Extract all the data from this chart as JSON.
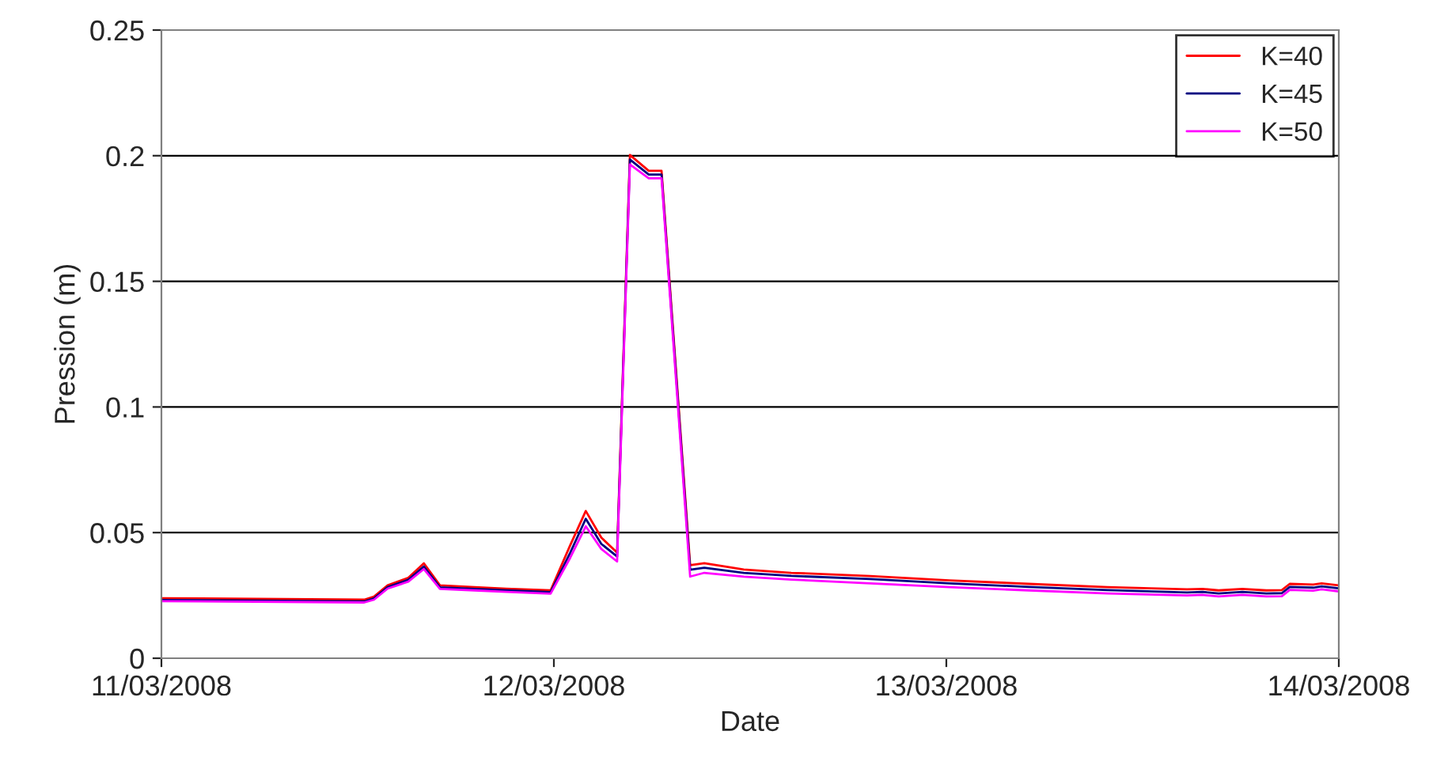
{
  "chart_data": {
    "type": "line",
    "xlabel": "Date",
    "ylabel": "Pression (m)",
    "x": [
      "2008-03-11T00:00",
      "2008-03-11T12:24",
      "2008-03-11T13:00",
      "2008-03-11T13:50",
      "2008-03-11T15:06",
      "2008-03-11T16:03",
      "2008-03-11T17:02",
      "2008-03-11T19:09",
      "2008-03-11T21:06",
      "2008-03-11T23:48",
      "2008-03-12T01:00",
      "2008-03-12T01:57",
      "2008-03-12T02:54",
      "2008-03-12T03:52",
      "2008-03-12T04:39",
      "2008-03-12T05:48",
      "2008-03-12T06:35",
      "2008-03-12T08:20",
      "2008-03-12T09:12",
      "2008-03-12T11:37",
      "2008-03-12T14:31",
      "2008-03-12T19:21",
      "2008-03-13T00:12",
      "2008-03-13T05:02",
      "2008-03-13T09:52",
      "2008-03-13T14:43",
      "2008-03-13T15:40",
      "2008-03-13T16:39",
      "2008-03-13T18:06",
      "2008-03-13T19:34",
      "2008-03-13T20:31",
      "2008-03-13T21:00",
      "2008-03-13T22:26",
      "2008-03-13T22:57",
      "2008-03-14T00:00"
    ],
    "series": [
      {
        "name": "K=40",
        "color": "#ff0000",
        "values": [
          0.0239,
          0.0233,
          0.0245,
          0.029,
          0.032,
          0.0378,
          0.029,
          0.0283,
          0.0277,
          0.027,
          0.045,
          0.0586,
          0.048,
          0.042,
          0.2003,
          0.194,
          0.194,
          0.037,
          0.0378,
          0.0353,
          0.034,
          0.0327,
          0.031,
          0.0296,
          0.0283,
          0.0274,
          0.0276,
          0.027,
          0.0276,
          0.027,
          0.0271,
          0.0296,
          0.0293,
          0.0298,
          0.029
        ]
      },
      {
        "name": "K=45",
        "color": "#000080",
        "values": [
          0.0232,
          0.0226,
          0.0238,
          0.0283,
          0.0312,
          0.0365,
          0.0282,
          0.0276,
          0.027,
          0.0263,
          0.042,
          0.0555,
          0.0455,
          0.0405,
          0.1985,
          0.1925,
          0.1925,
          0.0352,
          0.036,
          0.034,
          0.0328,
          0.0315,
          0.0298,
          0.0284,
          0.0271,
          0.0262,
          0.0264,
          0.0258,
          0.0264,
          0.0258,
          0.0259,
          0.0284,
          0.0281,
          0.0286,
          0.0278
        ]
      },
      {
        "name": "K=50",
        "color": "#ff00ff",
        "values": [
          0.0227,
          0.0222,
          0.0233,
          0.0277,
          0.0305,
          0.0355,
          0.0276,
          0.027,
          0.0264,
          0.0257,
          0.04,
          0.0525,
          0.0435,
          0.0385,
          0.1965,
          0.191,
          0.191,
          0.0325,
          0.034,
          0.0325,
          0.0313,
          0.0298,
          0.0283,
          0.027,
          0.0258,
          0.025,
          0.0252,
          0.0246,
          0.0252,
          0.0246,
          0.0247,
          0.0272,
          0.0269,
          0.0274,
          0.0266
        ]
      }
    ],
    "xlim": [
      "2008-03-11",
      "2008-03-14"
    ],
    "xticks": [
      {
        "value": "2008-03-11",
        "label": "11/03/2008"
      },
      {
        "value": "2008-03-12",
        "label": "12/03/2008"
      },
      {
        "value": "2008-03-13",
        "label": "13/03/2008"
      },
      {
        "value": "2008-03-14",
        "label": "14/03/2008"
      }
    ],
    "ylim": [
      0,
      0.25
    ],
    "yticks": [
      0,
      0.05,
      0.1,
      0.15,
      0.2,
      0.25
    ],
    "grid": "y",
    "legend": "top right",
    "marker": "none",
    "line_style": "solid"
  }
}
